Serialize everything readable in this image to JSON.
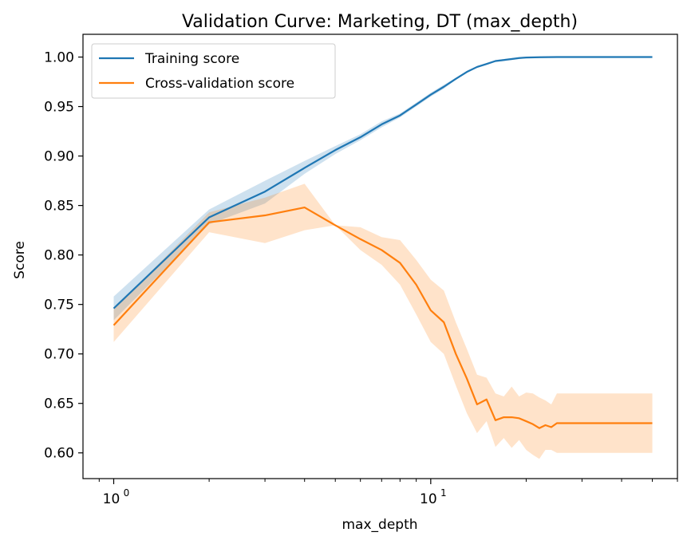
{
  "chart_data": {
    "type": "line",
    "title": "Validation Curve: Marketing, DT (max_depth)",
    "xlabel": "max_depth",
    "ylabel": "Score",
    "xscale": "log",
    "xlim": [
      0.8,
      60
    ],
    "ylim": [
      0.574,
      1.023
    ],
    "x_ticks": [
      {
        "value": 1,
        "base": "10",
        "exp": "0"
      },
      {
        "value": 10,
        "base": "10",
        "exp": "1"
      }
    ],
    "y_ticks": [
      {
        "value": 0.6,
        "label": "0.60"
      },
      {
        "value": 0.65,
        "label": "0.65"
      },
      {
        "value": 0.7,
        "label": "0.70"
      },
      {
        "value": 0.75,
        "label": "0.75"
      },
      {
        "value": 0.8,
        "label": "0.80"
      },
      {
        "value": 0.85,
        "label": "0.85"
      },
      {
        "value": 0.9,
        "label": "0.90"
      },
      {
        "value": 0.95,
        "label": "0.95"
      },
      {
        "value": 1.0,
        "label": "1.00"
      }
    ],
    "legend": {
      "position": "top-left"
    },
    "grid": false,
    "series": [
      {
        "name": "Training score",
        "color": "#1f77b4",
        "x": [
          1,
          2,
          3,
          4,
          5,
          6,
          7,
          8,
          9,
          10,
          11,
          12,
          13,
          14,
          15,
          16,
          17,
          18,
          19,
          20,
          22,
          25,
          30,
          35,
          40,
          50
        ],
        "y": [
          0.746,
          0.838,
          0.864,
          0.888,
          0.906,
          0.919,
          0.932,
          0.941,
          0.952,
          0.962,
          0.97,
          0.978,
          0.985,
          0.99,
          0.993,
          0.996,
          0.997,
          0.998,
          0.999,
          0.9995,
          0.9998,
          1.0,
          1.0,
          1.0,
          1.0,
          1.0
        ],
        "lower": [
          0.734,
          0.831,
          0.852,
          0.882,
          0.902,
          0.916,
          0.929,
          0.939,
          0.95,
          0.96,
          0.968,
          0.977,
          0.984,
          0.989,
          0.992,
          0.995,
          0.996,
          0.997,
          0.998,
          0.999,
          0.9996,
          1.0,
          1.0,
          1.0,
          1.0,
          1.0
        ],
        "upper": [
          0.758,
          0.846,
          0.875,
          0.895,
          0.91,
          0.922,
          0.935,
          0.943,
          0.954,
          0.964,
          0.972,
          0.979,
          0.986,
          0.991,
          0.994,
          0.997,
          0.998,
          0.999,
          0.9995,
          1.0,
          1.0,
          1.0,
          1.0,
          1.0,
          1.0,
          1.0
        ]
      },
      {
        "name": "Cross-validation score",
        "color": "#ff7f0e",
        "x": [
          1,
          2,
          3,
          4,
          5,
          6,
          7,
          8,
          9,
          10,
          11,
          12,
          13,
          14,
          15,
          16,
          17,
          18,
          19,
          20,
          21,
          22,
          23,
          24,
          25,
          30,
          40,
          50
        ],
        "y": [
          0.729,
          0.833,
          0.84,
          0.848,
          0.83,
          0.816,
          0.805,
          0.792,
          0.77,
          0.744,
          0.732,
          0.7,
          0.675,
          0.649,
          0.654,
          0.633,
          0.636,
          0.636,
          0.635,
          0.632,
          0.629,
          0.625,
          0.628,
          0.626,
          0.63,
          0.63,
          0.63,
          0.63
        ],
        "lower": [
          0.712,
          0.823,
          0.812,
          0.825,
          0.83,
          0.805,
          0.79,
          0.77,
          0.74,
          0.712,
          0.7,
          0.668,
          0.64,
          0.62,
          0.632,
          0.606,
          0.615,
          0.605,
          0.613,
          0.603,
          0.598,
          0.594,
          0.603,
          0.603,
          0.6,
          0.6,
          0.6,
          0.6
        ],
        "upper": [
          0.745,
          0.843,
          0.858,
          0.872,
          0.83,
          0.828,
          0.818,
          0.815,
          0.795,
          0.775,
          0.764,
          0.732,
          0.705,
          0.679,
          0.676,
          0.66,
          0.657,
          0.667,
          0.657,
          0.661,
          0.66,
          0.656,
          0.653,
          0.649,
          0.66,
          0.66,
          0.66,
          0.66
        ]
      }
    ]
  }
}
